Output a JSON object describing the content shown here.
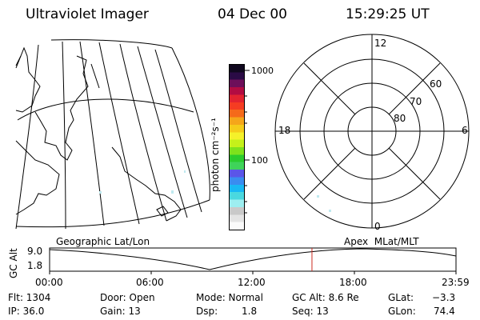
{
  "header": {
    "title": "Ultraviolet Imager",
    "date": "04 Dec 00",
    "time": "15:29:25 UT"
  },
  "colorbar": {
    "unit_label": "photon cm⁻²s⁻¹",
    "ticks": [
      "1000",
      "100"
    ],
    "colors": [
      "#fafafa",
      "#e4e4e4",
      "#c9c9c9",
      "#9deef0",
      "#4ad8df",
      "#19b8f4",
      "#3a8cf0",
      "#5b55e8",
      "#3fd35a",
      "#2bcc2d",
      "#7ee21c",
      "#c5f11a",
      "#f5f12a",
      "#f5cc1a",
      "#f5a61a",
      "#f56a1a",
      "#f53c22",
      "#e22330",
      "#b20c42",
      "#6d0f5a",
      "#2a0b45",
      "#10081e"
    ]
  },
  "polar": {
    "mlt_labels": {
      "top": "12",
      "left": "18",
      "right": "6",
      "bottom": "0"
    },
    "lat_labels": [
      "60",
      "70",
      "80"
    ]
  },
  "timeline": {
    "left_label": "Geographic Lat/Lon",
    "right_label": "Apex  MLat/MLT",
    "y_axis_title": "GC Alt",
    "y_ticks": [
      "9.0",
      "1.8"
    ],
    "x_ticks": [
      "00:00",
      "06:00",
      "12:00",
      "18:00",
      "23:59"
    ],
    "marker_color": "#cc2a20",
    "marker_time": "15:29"
  },
  "status": {
    "flt": "Flt: 1304",
    "ip": "IP: 36.0",
    "door": "Door: Open",
    "gain": "Gain: 13",
    "mode": "Mode: Normal",
    "dsp_label": "Dsp:",
    "dsp_value": "1.8",
    "gc_alt": "GC Alt: 8.6 Re",
    "seq": "Seq: 13",
    "glat_label": "GLat:",
    "glat_value": "−3.3",
    "glon_label": "GLon:",
    "glon_value": "74.4"
  }
}
